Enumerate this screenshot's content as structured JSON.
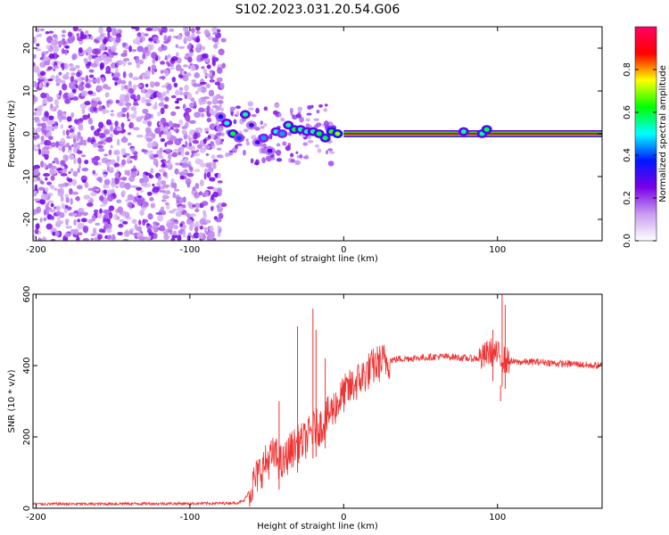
{
  "figure": {
    "title": "S102.2023.031.20.54.G06"
  },
  "chart_data": [
    {
      "type": "heatmap",
      "xlabel": "Height of straight line (km)",
      "ylabel": "Frequency (Hz)",
      "xlim": [
        -202,
        168
      ],
      "ylim": [
        -25,
        25
      ],
      "xticks": [
        -200,
        -100,
        0,
        100
      ],
      "yticks": [
        -20,
        -10,
        0,
        10,
        20
      ],
      "colorbar": {
        "label": "Normalized spectral amplitude",
        "range": [
          0,
          1
        ],
        "ticks": [
          "0.0",
          "0.2",
          "0.4",
          "0.6",
          "0.8"
        ],
        "colormap": [
          "#ffffff",
          "#c99cf0",
          "#7a00e8",
          "#0018ff",
          "#00ffff",
          "#00ff00",
          "#ffff00",
          "#ff0000",
          "#ff0066"
        ]
      },
      "tone_line": {
        "frequency": 0,
        "from_height": 0,
        "to_height": 168,
        "amplitude": 1.0
      },
      "noise_region": {
        "from_height": -202,
        "to_height": -78,
        "frequency_span": [
          -25,
          25
        ]
      },
      "tone_track": [
        {
          "x": -80,
          "y": 4,
          "a": 0.35
        },
        {
          "x": -76,
          "y": 2.5,
          "a": 0.5
        },
        {
          "x": -72,
          "y": 0,
          "a": 0.6
        },
        {
          "x": -68,
          "y": -1,
          "a": 0.4
        },
        {
          "x": -64,
          "y": 4.5,
          "a": 0.55
        },
        {
          "x": -60,
          "y": 2,
          "a": 0.3
        },
        {
          "x": -56,
          "y": -2,
          "a": 0.3
        },
        {
          "x": -52,
          "y": -1,
          "a": 0.45
        },
        {
          "x": -48,
          "y": -4,
          "a": 0.3
        },
        {
          "x": -44,
          "y": 0.5,
          "a": 0.5
        },
        {
          "x": -40,
          "y": 0,
          "a": 0.45
        },
        {
          "x": -36,
          "y": 2,
          "a": 0.55
        },
        {
          "x": -32,
          "y": 1,
          "a": 0.6
        },
        {
          "x": -28,
          "y": 1,
          "a": 0.55
        },
        {
          "x": -24,
          "y": 0.5,
          "a": 0.5
        },
        {
          "x": -20,
          "y": 0.5,
          "a": 0.55
        },
        {
          "x": -16,
          "y": 0,
          "a": 0.6
        },
        {
          "x": -12,
          "y": -1,
          "a": 0.6
        },
        {
          "x": -8,
          "y": 0.5,
          "a": 0.65
        },
        {
          "x": -4,
          "y": 0,
          "a": 0.7
        },
        {
          "x": 78,
          "y": 0.5,
          "a": 0.55
        },
        {
          "x": 90,
          "y": 0,
          "a": 0.55
        },
        {
          "x": 93,
          "y": 1,
          "a": 0.6
        }
      ]
    },
    {
      "type": "line",
      "xlabel": "Height of straight line (km)",
      "ylabel": "SNR (10 * v/v)",
      "xlim": [
        -202,
        168
      ],
      "ylim": [
        0,
        600
      ],
      "xticks": [
        -200,
        -100,
        0,
        100
      ],
      "yticks": [
        0,
        200,
        400,
        600
      ],
      "color": "#ee3333",
      "series": [
        {
          "x": [
            -202,
            -180,
            -160,
            -140,
            -120,
            -100,
            -80,
            -70,
            -65,
            -60,
            -55,
            -50,
            -45,
            -40,
            -35,
            -30,
            -25,
            -20,
            -15,
            -10,
            -5,
            0,
            5,
            10,
            15,
            20,
            25,
            30,
            35,
            40,
            50,
            60,
            70,
            80,
            90,
            95,
            100,
            105,
            110,
            120,
            130,
            140,
            150,
            160,
            168
          ],
          "y": [
            12,
            12,
            12,
            13,
            13,
            13,
            14,
            15,
            20,
            60,
            100,
            130,
            150,
            120,
            160,
            180,
            190,
            220,
            230,
            260,
            290,
            320,
            340,
            360,
            380,
            400,
            410,
            415,
            418,
            420,
            422,
            425,
            425,
            420,
            420,
            440,
            430,
            415,
            410,
            410,
            410,
            405,
            405,
            400,
            400
          ]
        }
      ],
      "spikes": [
        {
          "x": -30,
          "y": 510
        },
        {
          "x": -20,
          "y": 560
        },
        {
          "x": -18,
          "y": 500
        },
        {
          "x": -42,
          "y": 300
        },
        {
          "x": -12,
          "y": 420
        },
        {
          "x": 97,
          "y": 500
        },
        {
          "x": 103,
          "y": 600
        },
        {
          "x": 105,
          "y": 570
        },
        {
          "x": 102,
          "y": 300
        }
      ]
    }
  ]
}
